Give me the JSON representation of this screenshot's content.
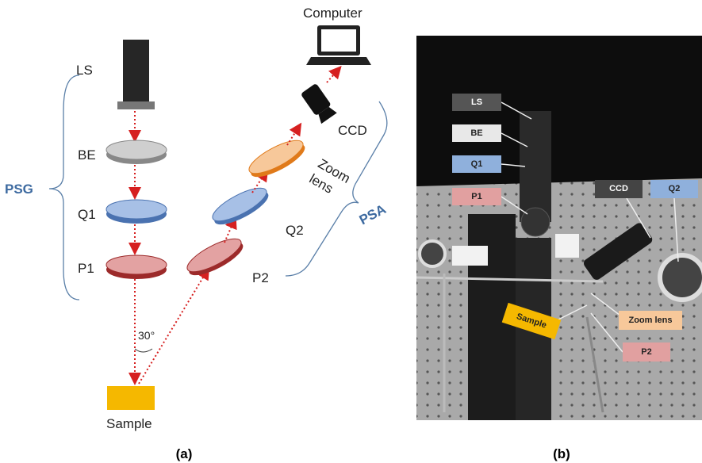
{
  "setup": {
    "computer": "Computer",
    "ls": "LS",
    "be": "BE",
    "q1": "Q1",
    "p1": "P1",
    "psg": "PSG",
    "ccd": "CCD",
    "zoom_lens": [
      "Zoom",
      "lens"
    ],
    "q2": "Q2",
    "p2": "P2",
    "psa": "PSA",
    "angle": "30°",
    "sample": "Sample"
  },
  "photo": {
    "ls": "LS",
    "be": "BE",
    "q1": "Q1",
    "p1": "P1",
    "ccd": "CCD",
    "q2": "Q2",
    "zoom_lens": "Zoom lens",
    "sample": "Sample",
    "p2": "P2"
  },
  "captions": [
    "(a)",
    "(b)"
  ]
}
